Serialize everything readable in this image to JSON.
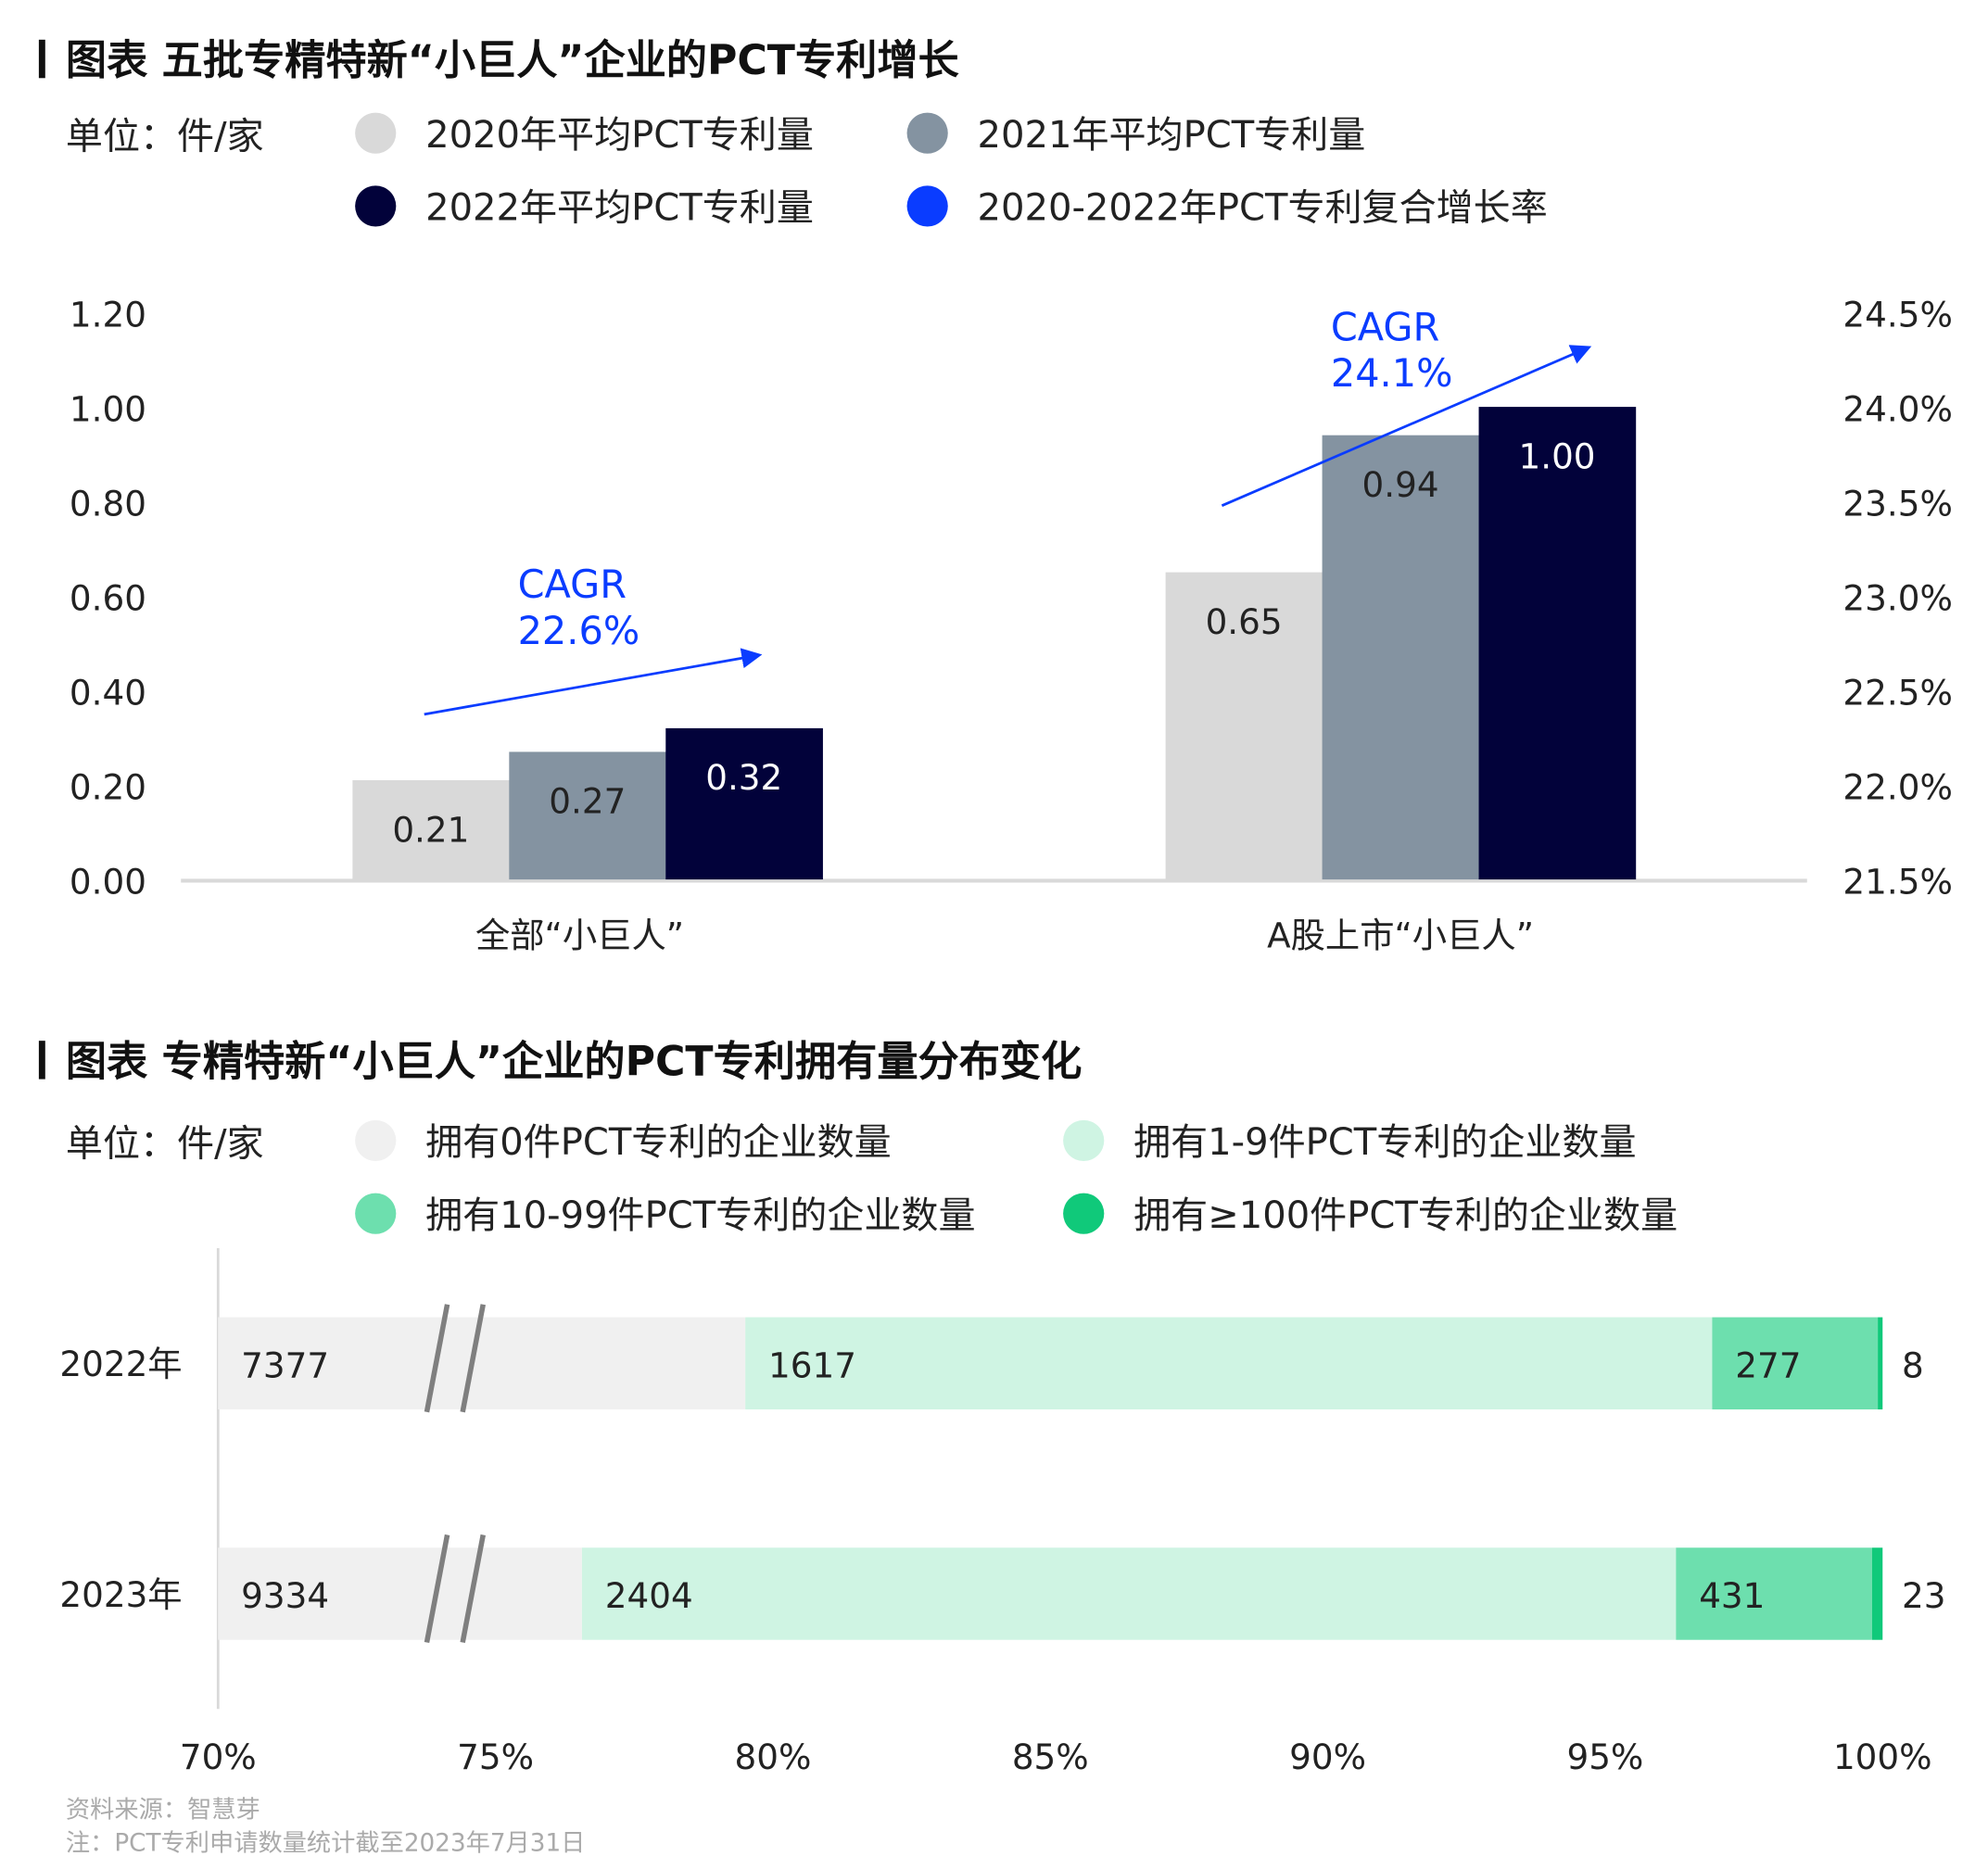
{
  "chart_data": [
    {
      "type": "bar",
      "title": "图表 五批专精特新“小巨人”企业的PCT专利增长",
      "unit_label": "单位：件/家",
      "categories": [
        "全部“小巨人”",
        "A股上市“小巨人”"
      ],
      "series": [
        {
          "name": "2020年平均PCT专利量",
          "color": "#d9d9d9",
          "values": [
            0.21,
            0.65
          ]
        },
        {
          "name": "2021年平均PCT专利量",
          "color": "#8493a1",
          "values": [
            0.27,
            0.94
          ]
        },
        {
          "name": "2022年平均PCT专利量",
          "color": "#02023a",
          "values": [
            0.32,
            1.0
          ]
        }
      ],
      "cagr_series": {
        "name": "2020-2022年PCT专利复合增长率",
        "color": "#0a3cff",
        "label_prefix": "CAGR",
        "values": [
          "22.6%",
          "24.1%"
        ]
      },
      "ylim": [
        0,
        1.2
      ],
      "y_ticks": [
        "0.00",
        "0.20",
        "0.40",
        "0.60",
        "0.80",
        "1.00",
        "1.20"
      ],
      "y2lim": [
        21.5,
        24.5
      ],
      "y2_ticks": [
        "21.5%",
        "22.0%",
        "22.5%",
        "23.0%",
        "23.5%",
        "24.0%",
        "24.5%"
      ],
      "legend_placement": "top",
      "grid": false
    },
    {
      "type": "bar",
      "orientation": "horizontal-stacked",
      "title": "图表 专精特新“小巨人”企业的PCT专利拥有量分布变化",
      "unit_label": "单位：件/家",
      "categories": [
        "2022年",
        "2023年"
      ],
      "series": [
        {
          "name": "拥有0件PCT专利的企业数量",
          "color": "#f0f0f0",
          "values": [
            7377,
            9334
          ]
        },
        {
          "name": "拥有1-9件PCT专利的企业数量",
          "color": "#cff4e3",
          "values": [
            1617,
            2404
          ]
        },
        {
          "name": "拥有10-99件PCT专利的企业数量",
          "color": "#6ddfae",
          "values": [
            277,
            431
          ]
        },
        {
          "name": "拥有≥100件PCT专利的企业数量",
          "color": "#10c97a",
          "values": [
            8,
            23
          ]
        }
      ],
      "xlim": [
        70,
        100
      ],
      "x_ticks": [
        "70%",
        "75%",
        "80%",
        "85%",
        "90%",
        "95%",
        "100%"
      ],
      "axis_break": true,
      "legend_placement": "top",
      "grid": false
    }
  ],
  "footer": {
    "source": "资料来源：智慧芽",
    "note": "注：PCT专利申请数量统计截至2023年7月31日"
  }
}
